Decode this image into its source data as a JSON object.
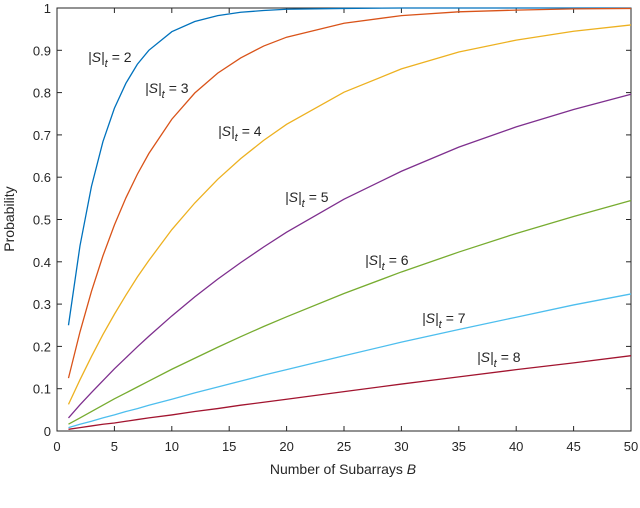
{
  "chart_data": {
    "type": "line",
    "xlabel": {
      "text": "Number of Subarrays",
      "var": "B"
    },
    "ylabel": "Probability",
    "x": [
      1,
      2,
      3,
      4,
      5,
      6,
      7,
      8,
      10,
      12,
      14,
      16,
      18,
      20,
      25,
      30,
      35,
      40,
      45,
      50
    ],
    "xlim": [
      0,
      50
    ],
    "xticks": [
      0,
      5,
      10,
      15,
      20,
      25,
      30,
      35,
      40,
      45,
      50
    ],
    "ylim": [
      0,
      1
    ],
    "yticks": [
      0,
      0.1,
      0.2,
      0.3,
      0.4,
      0.5,
      0.6,
      0.7,
      0.8,
      0.9,
      1
    ],
    "grid": false,
    "series": [
      {
        "label": {
          "main": "|S|",
          "sub": "t",
          "rest": "= 2"
        },
        "color": "#0072BD",
        "values": [
          0.25,
          0.4375,
          0.578,
          0.684,
          0.763,
          0.822,
          0.867,
          0.9,
          0.944,
          0.968,
          0.982,
          0.99,
          0.994,
          0.997,
          0.999,
          1,
          1,
          1,
          1,
          1
        ]
      },
      {
        "label": {
          "main": "|S|",
          "sub": "t",
          "rest": "= 3"
        },
        "color": "#D95319",
        "values": [
          0.125,
          0.234,
          0.33,
          0.414,
          0.487,
          0.551,
          0.607,
          0.656,
          0.737,
          0.799,
          0.846,
          0.882,
          0.91,
          0.931,
          0.964,
          0.982,
          0.991,
          0.995,
          0.998,
          0.999
        ]
      },
      {
        "label": {
          "main": "|S|",
          "sub": "t",
          "rest": "= 4"
        },
        "color": "#EDB120",
        "values": [
          0.063,
          0.121,
          0.176,
          0.228,
          0.276,
          0.321,
          0.364,
          0.403,
          0.476,
          0.539,
          0.595,
          0.644,
          0.687,
          0.725,
          0.801,
          0.856,
          0.896,
          0.924,
          0.945,
          0.96
        ]
      },
      {
        "label": {
          "main": "|S|",
          "sub": "t",
          "rest": "= 5"
        },
        "color": "#7E2F8E",
        "values": [
          0.031,
          0.062,
          0.091,
          0.119,
          0.147,
          0.173,
          0.199,
          0.224,
          0.272,
          0.317,
          0.359,
          0.398,
          0.435,
          0.47,
          0.548,
          0.614,
          0.671,
          0.719,
          0.76,
          0.796
        ]
      },
      {
        "label": {
          "main": "|S|",
          "sub": "t",
          "rest": "= 6"
        },
        "color": "#77AC30",
        "values": [
          0.016,
          0.031,
          0.046,
          0.061,
          0.076,
          0.09,
          0.104,
          0.118,
          0.146,
          0.172,
          0.198,
          0.223,
          0.247,
          0.27,
          0.325,
          0.376,
          0.423,
          0.467,
          0.507,
          0.545
        ]
      },
      {
        "label": {
          "main": "|S|",
          "sub": "t",
          "rest": "= 7"
        },
        "color": "#4DBEEE",
        "values": [
          0.008,
          0.016,
          0.023,
          0.031,
          0.038,
          0.046,
          0.053,
          0.061,
          0.075,
          0.09,
          0.104,
          0.118,
          0.132,
          0.145,
          0.178,
          0.21,
          0.24,
          0.269,
          0.298,
          0.324
        ]
      },
      {
        "label": {
          "main": "|S|",
          "sub": "t",
          "rest": "= 8"
        },
        "color": "#A2142F",
        "values": [
          0.004,
          0.008,
          0.012,
          0.016,
          0.019,
          0.023,
          0.027,
          0.031,
          0.038,
          0.046,
          0.053,
          0.061,
          0.068,
          0.075,
          0.093,
          0.111,
          0.128,
          0.145,
          0.161,
          0.178
        ]
      }
    ]
  }
}
